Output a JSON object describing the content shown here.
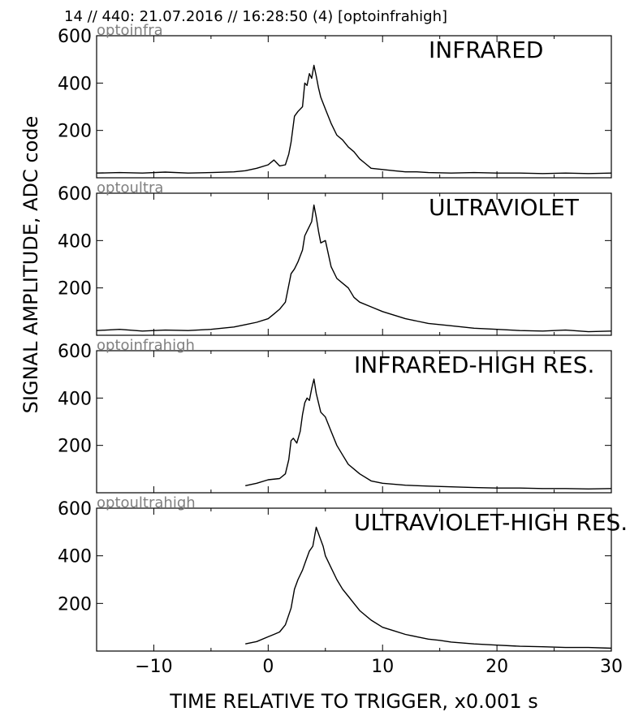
{
  "figure": {
    "suptitle": "14 // 440:   21.07.2016 // 16:28:50 (4)  [optoinfrahigh]",
    "xlabel": "TIME RELATIVE TO TRIGGER,   x0.001 s",
    "ylabel": "SIGNAL AMPLITUDE,  ADC code",
    "x_ticks": [
      "−10",
      "0",
      "10",
      "20",
      "30"
    ]
  },
  "chart_data": [
    {
      "type": "line",
      "tag": "optoinfra",
      "title": "INFRARED",
      "xlim": [
        -15,
        30
      ],
      "ylim": [
        0,
        600
      ],
      "yticks": [
        200,
        400,
        600
      ],
      "x": [
        -15,
        -13,
        -11,
        -9,
        -7,
        -5,
        -3,
        -2,
        -1,
        0,
        0.5,
        1,
        1.5,
        1.8,
        2,
        2.3,
        2.6,
        3,
        3.2,
        3.4,
        3.6,
        3.8,
        4,
        4.2,
        4.4,
        4.6,
        5,
        5.5,
        6,
        6.5,
        7,
        7.5,
        8,
        8.5,
        9,
        10,
        11,
        12,
        13,
        14,
        16,
        18,
        20,
        22,
        24,
        26,
        28,
        30
      ],
      "values": [
        20,
        22,
        20,
        24,
        20,
        22,
        25,
        30,
        40,
        55,
        75,
        50,
        55,
        100,
        150,
        260,
        280,
        300,
        400,
        390,
        440,
        420,
        475,
        430,
        380,
        340,
        290,
        230,
        180,
        160,
        130,
        110,
        80,
        60,
        40,
        35,
        30,
        25,
        25,
        22,
        20,
        22,
        20,
        20,
        18,
        20,
        18,
        20
      ]
    },
    {
      "type": "line",
      "tag": "optoultra",
      "title": "ULTRAVIOLET",
      "xlim": [
        -15,
        30
      ],
      "ylim": [
        0,
        600
      ],
      "yticks": [
        200,
        400,
        600
      ],
      "x": [
        -15,
        -13,
        -11,
        -9,
        -7,
        -5,
        -3,
        -2,
        -1,
        0,
        0.5,
        1,
        1.5,
        2,
        2.3,
        2.6,
        3,
        3.2,
        3.4,
        3.6,
        3.8,
        4,
        4.2,
        4.4,
        4.6,
        5,
        5.5,
        6,
        6.5,
        7,
        7.5,
        8,
        9,
        10,
        11,
        12,
        13,
        14,
        16,
        18,
        20,
        22,
        24,
        26,
        28,
        30
      ],
      "values": [
        20,
        25,
        18,
        22,
        20,
        25,
        35,
        45,
        55,
        70,
        90,
        110,
        140,
        260,
        280,
        310,
        360,
        420,
        440,
        460,
        480,
        550,
        500,
        440,
        390,
        400,
        290,
        240,
        220,
        200,
        160,
        140,
        120,
        100,
        85,
        70,
        60,
        50,
        40,
        30,
        25,
        20,
        18,
        22,
        15,
        18
      ]
    },
    {
      "type": "line",
      "tag": "optoinfrahigh",
      "title": "INFRARED-HIGH RES.",
      "xlim": [
        -15,
        30
      ],
      "ylim": [
        0,
        600
      ],
      "yticks": [
        200,
        400,
        600
      ],
      "x": [
        -2,
        -1,
        0,
        1,
        1.5,
        1.8,
        2,
        2.2,
        2.5,
        2.8,
        3,
        3.2,
        3.4,
        3.6,
        3.8,
        4,
        4.2,
        4.4,
        4.6,
        5,
        5.5,
        6,
        6.5,
        7,
        7.5,
        8,
        9,
        10,
        12,
        14,
        16,
        18,
        20,
        22,
        24,
        26,
        28,
        30
      ],
      "values": [
        30,
        40,
        55,
        60,
        80,
        140,
        220,
        230,
        210,
        260,
        330,
        380,
        400,
        390,
        440,
        480,
        420,
        380,
        340,
        320,
        260,
        200,
        160,
        120,
        100,
        80,
        50,
        40,
        32,
        28,
        25,
        22,
        20,
        20,
        18,
        18,
        16,
        18
      ]
    },
    {
      "type": "line",
      "tag": "optoultrahigh",
      "title": "ULTRAVIOLET-HIGH RES.",
      "xlim": [
        -15,
        30
      ],
      "ylim": [
        0,
        600
      ],
      "yticks": [
        200,
        400,
        600
      ],
      "x": [
        -2,
        -1,
        0,
        0.5,
        1,
        1.5,
        2,
        2.3,
        2.6,
        3,
        3.3,
        3.6,
        3.9,
        4.2,
        4.5,
        4.8,
        5,
        5.5,
        6,
        6.5,
        7,
        7.5,
        8,
        9,
        10,
        11,
        12,
        13,
        14,
        15,
        16,
        18,
        20,
        22,
        24,
        26,
        28,
        30
      ],
      "values": [
        30,
        40,
        60,
        70,
        80,
        110,
        180,
        260,
        300,
        340,
        380,
        420,
        440,
        520,
        480,
        440,
        400,
        350,
        300,
        260,
        230,
        200,
        170,
        130,
        100,
        85,
        70,
        60,
        50,
        45,
        38,
        30,
        25,
        20,
        18,
        15,
        15,
        12
      ]
    }
  ]
}
